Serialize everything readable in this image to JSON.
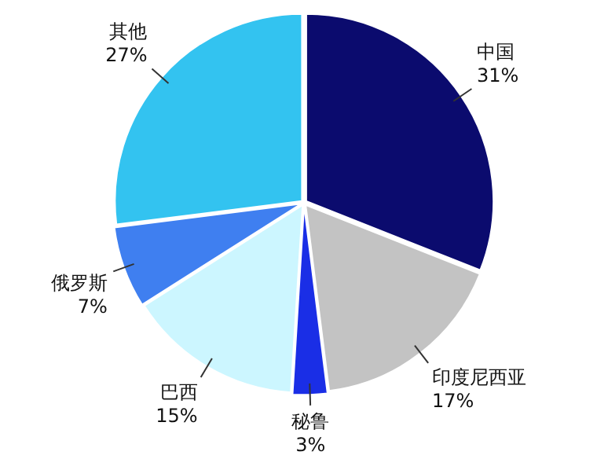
{
  "chart_data": {
    "type": "pie",
    "categories": [
      "中国",
      "印度尼西亚",
      "秘鲁",
      "巴西",
      "俄罗斯",
      "其他"
    ],
    "values": [
      31,
      17,
      3,
      15,
      7,
      27
    ],
    "colors": [
      "#0b0b6e",
      "#c3c3c3",
      "#1a2ee6",
      "#ccf6ff",
      "#3f7ff0",
      "#33c3f0"
    ],
    "value_labels": [
      "31%",
      "17%",
      "3%",
      "15%",
      "7%",
      "27%"
    ],
    "legend": false
  }
}
